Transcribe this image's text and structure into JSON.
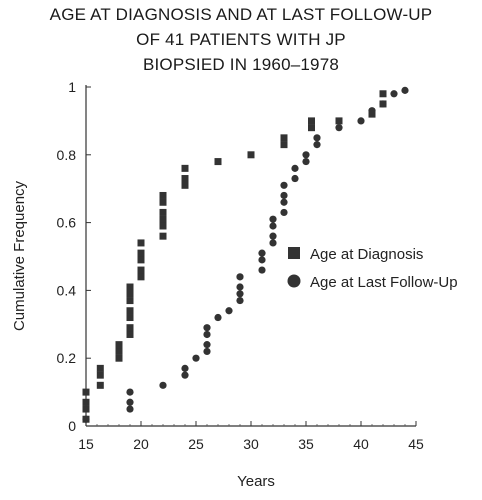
{
  "chart_data": {
    "type": "scatter",
    "title_lines": [
      "AGE AT DIAGNOSIS AND AT LAST FOLLOW-UP",
      "OF 41 PATIENTS WITH JP",
      "BIOPSIED IN 1960–1978"
    ],
    "xlabel": "Years",
    "ylabel": "Cumulative Frequency",
    "xlim": [
      15,
      45
    ],
    "ylim": [
      0,
      1
    ],
    "x_ticks": [
      "15",
      "20",
      "25",
      "30",
      "35",
      "40",
      "45"
    ],
    "y_ticks": [
      "0",
      "0.2",
      "0.4",
      "0.6",
      "0.8",
      "1"
    ],
    "grid": false,
    "legend_position": "center-right",
    "series": [
      {
        "name": "Age at Diagnosis",
        "marker": "square",
        "color": "#333333",
        "points": [
          [
            15,
            0.02
          ],
          [
            15,
            0.05
          ],
          [
            15,
            0.07
          ],
          [
            15,
            0.1
          ],
          [
            16.3,
            0.12
          ],
          [
            16.3,
            0.15
          ],
          [
            16.3,
            0.17
          ],
          [
            18,
            0.2
          ],
          [
            18,
            0.22
          ],
          [
            18,
            0.24
          ],
          [
            19,
            0.27
          ],
          [
            19,
            0.29
          ],
          [
            19,
            0.32
          ],
          [
            19,
            0.34
          ],
          [
            19,
            0.37
          ],
          [
            19,
            0.39
          ],
          [
            19,
            0.41
          ],
          [
            20,
            0.44
          ],
          [
            20,
            0.46
          ],
          [
            20,
            0.49
          ],
          [
            20,
            0.51
          ],
          [
            20,
            0.54
          ],
          [
            22,
            0.56
          ],
          [
            22,
            0.59
          ],
          [
            22,
            0.61
          ],
          [
            22,
            0.63
          ],
          [
            22,
            0.66
          ],
          [
            22,
            0.68
          ],
          [
            24,
            0.71
          ],
          [
            24,
            0.73
          ],
          [
            24,
            0.76
          ],
          [
            27,
            0.78
          ],
          [
            30,
            0.8
          ],
          [
            33,
            0.83
          ],
          [
            33,
            0.85
          ],
          [
            35.5,
            0.88
          ],
          [
            35.5,
            0.9
          ],
          [
            38,
            0.9
          ],
          [
            41,
            0.92
          ],
          [
            42,
            0.95
          ],
          [
            42,
            0.98
          ]
        ]
      },
      {
        "name": "Age at Last Follow-Up",
        "marker": "circle",
        "color": "#333333",
        "points": [
          [
            15,
            0.02
          ],
          [
            19,
            0.05
          ],
          [
            19,
            0.07
          ],
          [
            19,
            0.1
          ],
          [
            22,
            0.12
          ],
          [
            24,
            0.15
          ],
          [
            24,
            0.17
          ],
          [
            25,
            0.2
          ],
          [
            26,
            0.22
          ],
          [
            26,
            0.24
          ],
          [
            26,
            0.27
          ],
          [
            26,
            0.29
          ],
          [
            27,
            0.32
          ],
          [
            28,
            0.34
          ],
          [
            29,
            0.37
          ],
          [
            29,
            0.39
          ],
          [
            29,
            0.41
          ],
          [
            29,
            0.44
          ],
          [
            31,
            0.46
          ],
          [
            31,
            0.49
          ],
          [
            31,
            0.51
          ],
          [
            32,
            0.54
          ],
          [
            32,
            0.56
          ],
          [
            32,
            0.59
          ],
          [
            32,
            0.61
          ],
          [
            33,
            0.63
          ],
          [
            33,
            0.66
          ],
          [
            33,
            0.68
          ],
          [
            33,
            0.71
          ],
          [
            34,
            0.73
          ],
          [
            34,
            0.76
          ],
          [
            35,
            0.78
          ],
          [
            35,
            0.8
          ],
          [
            36,
            0.83
          ],
          [
            36,
            0.85
          ],
          [
            38,
            0.88
          ],
          [
            40,
            0.9
          ],
          [
            41,
            0.93
          ],
          [
            42,
            0.95
          ],
          [
            43,
            0.98
          ],
          [
            44,
            0.99
          ]
        ]
      }
    ]
  }
}
